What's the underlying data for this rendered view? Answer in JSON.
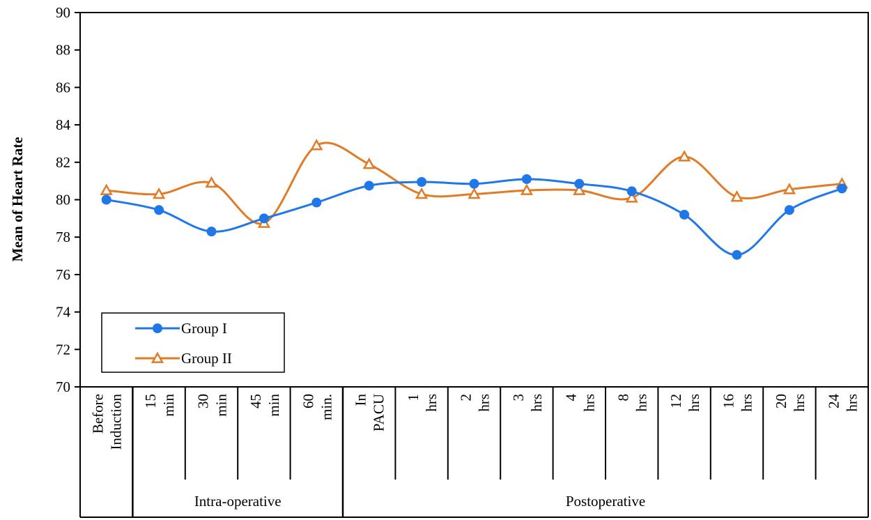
{
  "chart_data": {
    "type": "line",
    "ylabel": "Mean of Heart Rate",
    "xlabel": "",
    "ylim": [
      70,
      90
    ],
    "yticks": [
      70,
      72,
      74,
      76,
      78,
      80,
      82,
      84,
      86,
      88,
      90
    ],
    "grid": false,
    "legend_position": "bottom-left",
    "categories": [
      [
        "Before",
        "Induction"
      ],
      [
        "15",
        "min"
      ],
      [
        "30",
        "min"
      ],
      [
        "45",
        "min"
      ],
      [
        "60",
        "min."
      ],
      [
        "In",
        "PACU"
      ],
      [
        "1",
        "hrs"
      ],
      [
        "2",
        "hrs"
      ],
      [
        "3",
        "hrs"
      ],
      [
        "4",
        "hrs"
      ],
      [
        "8",
        "hrs"
      ],
      [
        "12",
        "hrs"
      ],
      [
        "16",
        "hrs"
      ],
      [
        "20",
        "hrs"
      ],
      [
        "24",
        "hrs"
      ]
    ],
    "groups": [
      {
        "label": "Intra-operative",
        "start": 1,
        "end": 4
      },
      {
        "label": "Postoperative",
        "start": 5,
        "end": 14
      }
    ],
    "series": [
      {
        "name": "Group I",
        "color": "#1f77e8",
        "marker": "circle",
        "values": [
          80.0,
          79.45,
          78.3,
          79.0,
          79.85,
          80.75,
          80.95,
          80.85,
          81.1,
          80.85,
          80.45,
          79.2,
          77.05,
          79.45,
          80.6
        ]
      },
      {
        "name": "Group II",
        "color": "#e07b26",
        "marker": "triangle",
        "values": [
          80.5,
          80.3,
          80.9,
          78.75,
          82.9,
          81.9,
          80.3,
          80.3,
          80.5,
          80.5,
          80.1,
          82.3,
          80.15,
          80.55,
          80.85
        ]
      }
    ]
  }
}
